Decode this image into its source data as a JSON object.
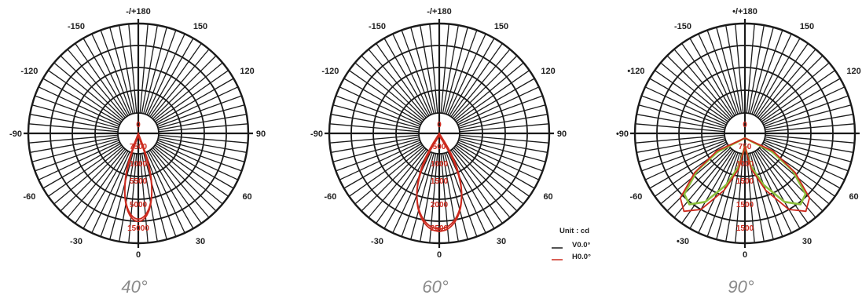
{
  "colors": {
    "grid": "#1a1a1a",
    "v_curve": "#cc2a1e",
    "h_curve": "#cc2a1e",
    "green_curve": "#8cbf3c",
    "ring_label": "#cc2a1e",
    "caption": "#8a8a8a"
  },
  "legend": {
    "unit": "Unit : cd",
    "v_label": "V0.0°",
    "h_label": "H0.0°"
  },
  "chart_data": [
    {
      "type": "polar",
      "caption": "40°",
      "angle_labels": {
        "top": "-/+180",
        "upper_left": "-150",
        "upper_right": "150",
        "left_upper": "-120",
        "right_upper": "120",
        "left": "-90",
        "right": "90",
        "left_lower": "-60",
        "right_lower": "60",
        "lower_left": "-30",
        "lower_right": "30",
        "bottom": "0"
      },
      "ring_labels": [
        "0",
        "7500",
        "1000",
        "5500",
        "5000",
        "15000"
      ],
      "series": [
        {
          "name": "V0.0°",
          "peak": 0.78,
          "beam_deg": 40,
          "shape": "lobe"
        },
        {
          "name": "H0.0°",
          "peak": 0.78,
          "beam_deg": 40,
          "shape": "lobe"
        }
      ]
    },
    {
      "type": "polar",
      "caption": "60°",
      "angle_labels": {
        "top": "-/+180",
        "upper_left": "-150",
        "upper_right": "150",
        "left_upper": "-120",
        "right_upper": "120",
        "left": "-90",
        "right": "90",
        "left_lower": "-60",
        "right_lower": "60",
        "lower_left": "-30",
        "lower_right": "30",
        "bottom": "0"
      },
      "ring_labels": [
        "0",
        "500",
        "1000",
        "1500",
        "2000",
        "2500"
      ],
      "series": [
        {
          "name": "V0.0°",
          "peak": 0.87,
          "beam_deg": 60,
          "shape": "lobe"
        },
        {
          "name": "H0.0°",
          "peak": 0.87,
          "beam_deg": 60,
          "shape": "lobe"
        }
      ]
    },
    {
      "type": "polar",
      "caption": "90°",
      "angle_labels": {
        "top": "•/+180",
        "upper_left": "-150",
        "upper_right": "150",
        "left_upper": "•120",
        "right_upper": "120",
        "left": "•90",
        "right": "90",
        "left_lower": "-60",
        "right_lower": "60",
        "lower_left": "•30",
        "lower_right": "30",
        "bottom": "0"
      },
      "ring_labels": [
        "0",
        "750",
        "1000",
        "1500",
        "1500",
        "1500"
      ],
      "series": [
        {
          "name": "V0.0°",
          "shape": "batwing",
          "points": [
            [
              0,
              0.12
            ],
            [
              10,
              0.3
            ],
            [
              20,
              0.5
            ],
            [
              30,
              0.72
            ],
            [
              38,
              0.82
            ],
            [
              45,
              0.78
            ],
            [
              52,
              0.55
            ],
            [
              56,
              0.3
            ]
          ]
        },
        {
          "name": "H0.0°",
          "shape": "batwing",
          "points": [
            [
              0,
              0.12
            ],
            [
              10,
              0.33
            ],
            [
              20,
              0.55
            ],
            [
              30,
              0.8
            ],
            [
              38,
              0.9
            ],
            [
              45,
              0.83
            ],
            [
              52,
              0.58
            ],
            [
              58,
              0.3
            ]
          ]
        }
      ]
    }
  ]
}
